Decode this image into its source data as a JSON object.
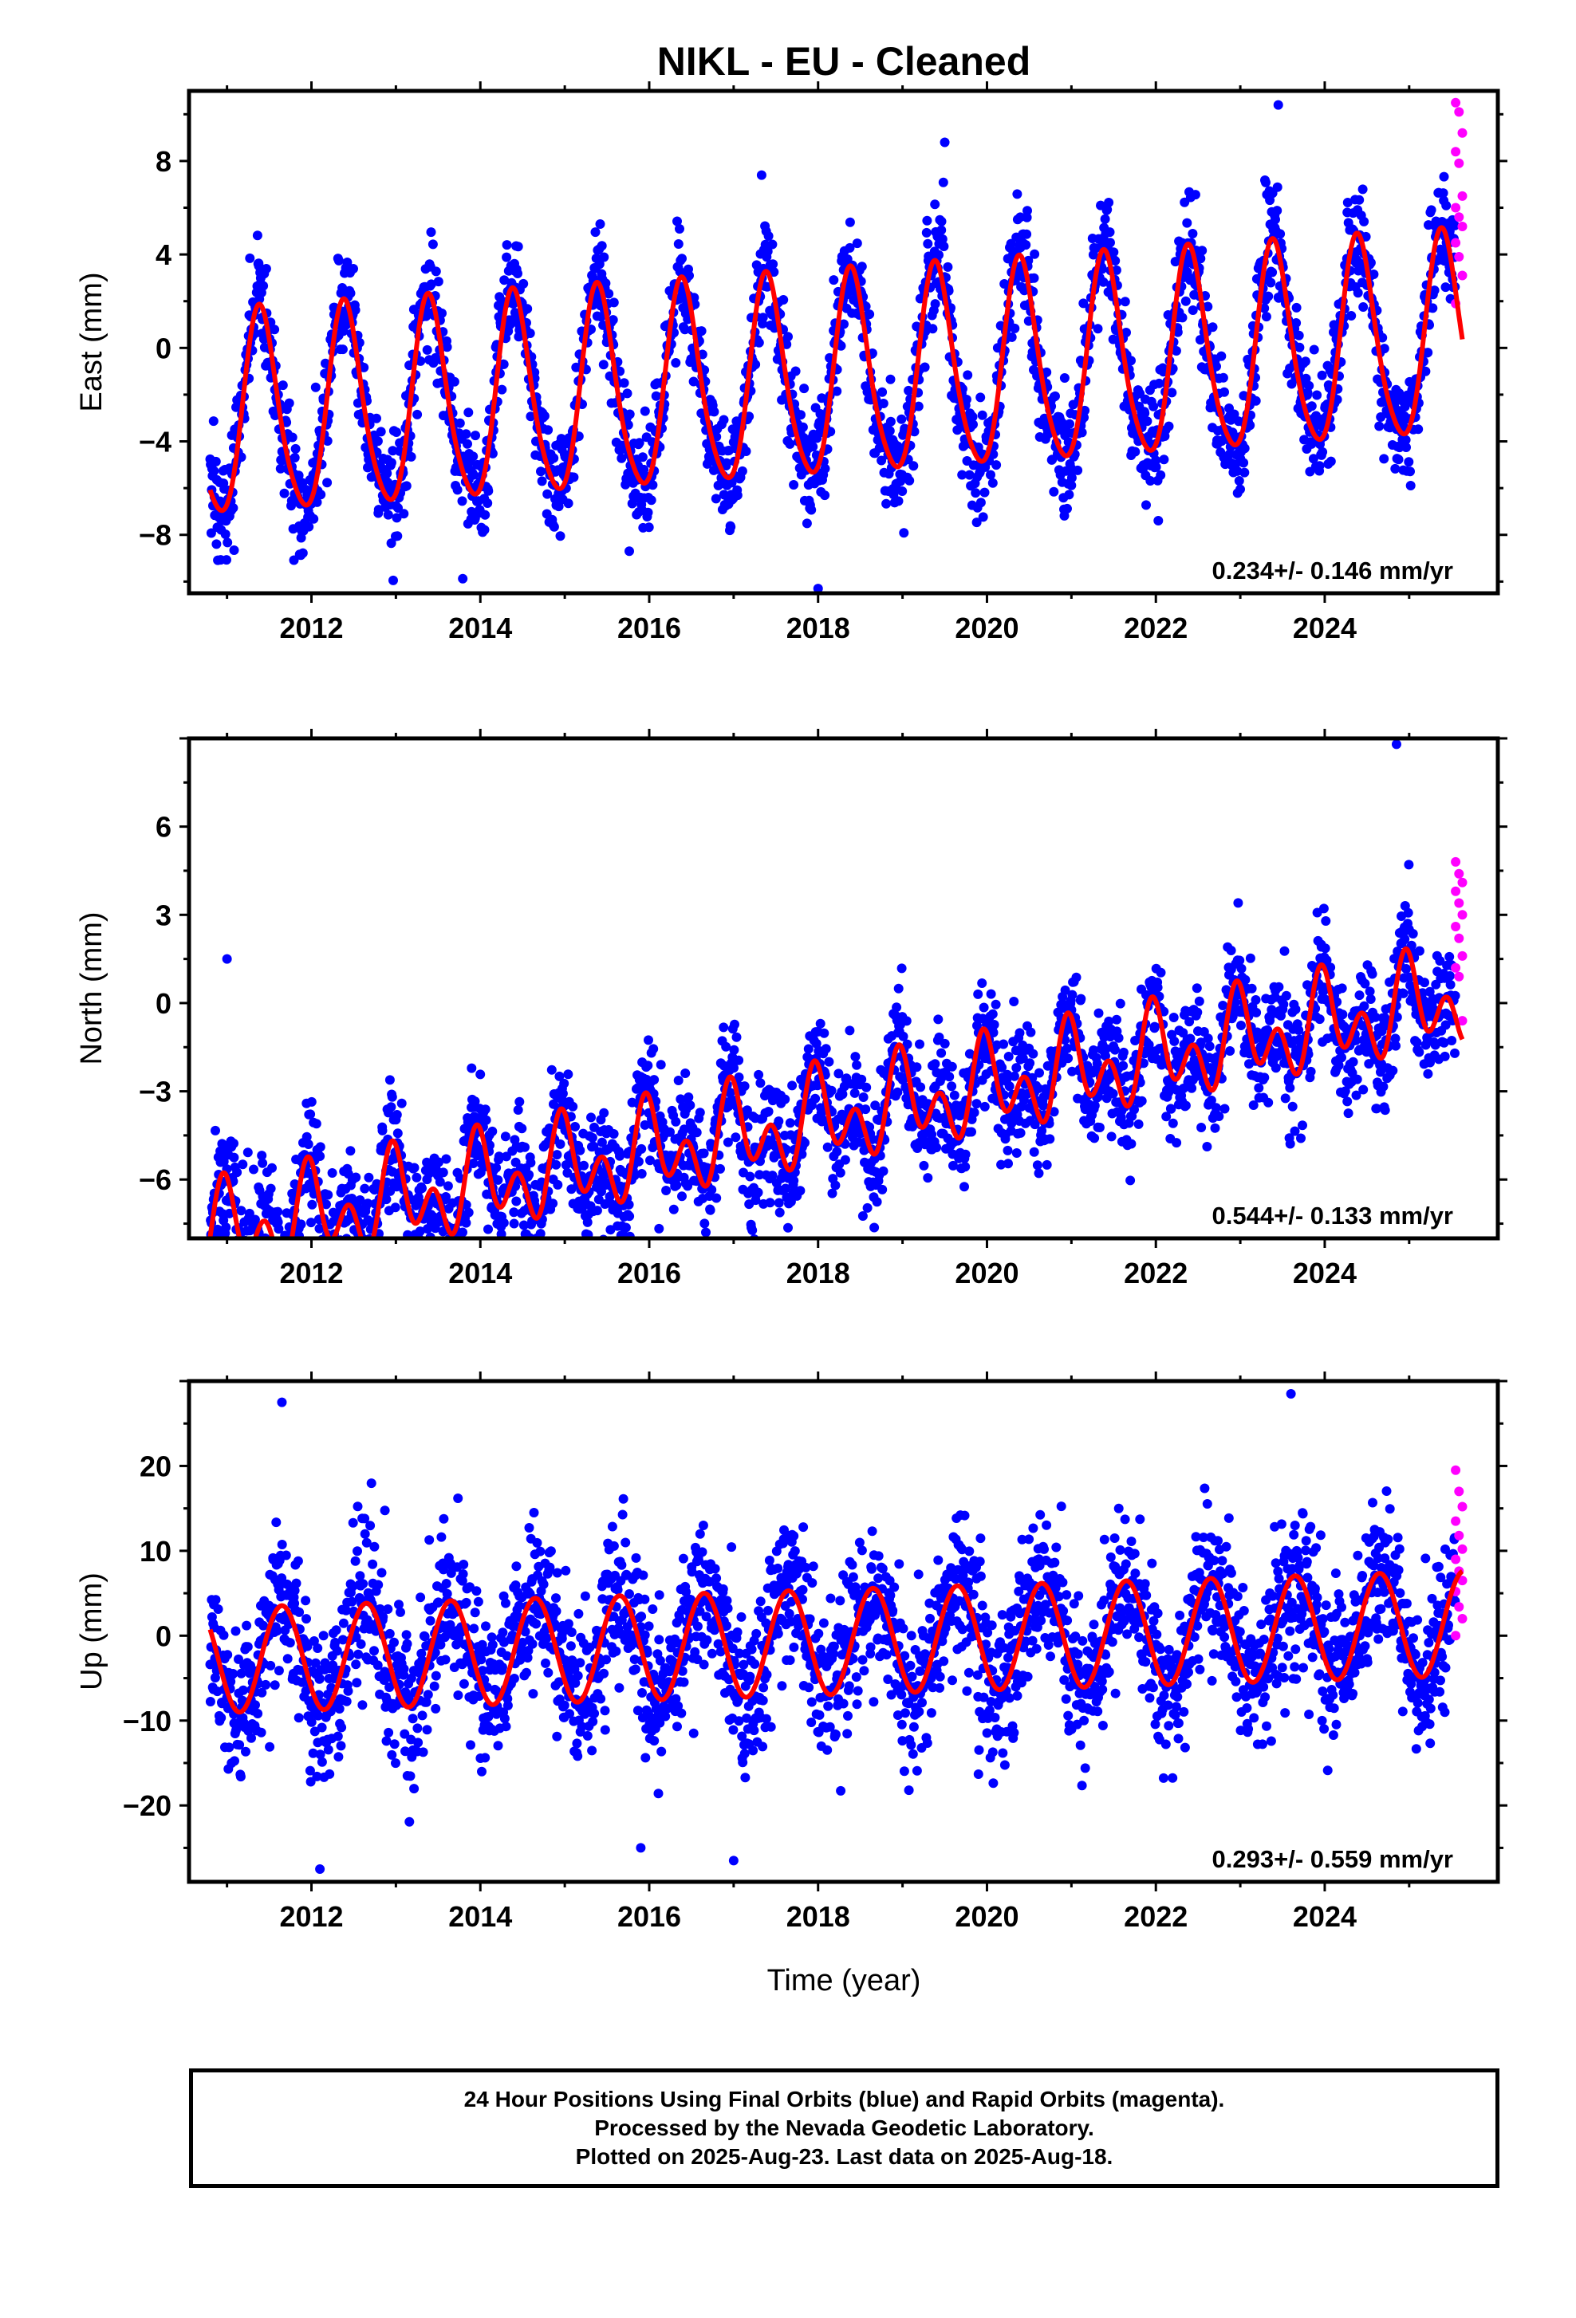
{
  "title": "NIKL  - EU - Cleaned",
  "xlabel": "Time (year)",
  "colors": {
    "final": "#0000ff",
    "rapid": "#ff00ff",
    "model": "#ff0000",
    "axes": "#000000"
  },
  "footer": {
    "line1": "24 Hour Positions Using Final Orbits (blue) and Rapid Orbits (magenta).",
    "line2": "Processed by the Nevada Geodetic Laboratory.",
    "line3": "Plotted on 2025-Aug-23. Last data on 2025-Aug-18."
  },
  "chart_data": [
    {
      "type": "scatter",
      "panel": "east",
      "ylabel": "East (mm)",
      "xlim": [
        2010.55,
        2026.05
      ],
      "ylim": [
        -10.5,
        11.0
      ],
      "xticks": [
        2012,
        2014,
        2016,
        2018,
        2020,
        2022,
        2024
      ],
      "yticks": [
        -8,
        -4,
        0,
        4,
        8
      ],
      "rate_label": "0.234+/- 0.146 mm/yr",
      "model": {
        "name": "model fit",
        "start": 2010.8,
        "end": 2025.63,
        "trend": [
          -1.4,
          0.234
        ],
        "annual_amp": 4.3,
        "annual_peak": 0.4,
        "semiannual_amp": 0.6,
        "semiannual_peak": 0.35
      },
      "scatter": {
        "final_sd": 1.2,
        "final_outliers": [
          [
            2018.0,
            -10.3
          ],
          [
            2023.45,
            10.4
          ],
          [
            2019.5,
            8.8
          ]
        ]
      },
      "rapid": {
        "name": "Rapid Orbits",
        "x_range": [
          2025.55,
          2025.63
        ],
        "values": [
          10.5,
          10.1,
          9.2,
          8.4,
          7.9,
          6.5,
          6.0,
          5.6,
          5.2,
          4.5,
          3.9,
          3.1,
          1.9
        ]
      }
    },
    {
      "type": "scatter",
      "panel": "north",
      "ylabel": "North (mm)",
      "xlim": [
        2010.55,
        2026.05
      ],
      "ylim": [
        -8.0,
        9.0
      ],
      "xticks": [
        2012,
        2014,
        2016,
        2018,
        2020,
        2022,
        2024
      ],
      "yticks": [
        -6,
        -3,
        0,
        3,
        6
      ],
      "rate_label": "0.544+/- 0.133 mm/yr",
      "model": {
        "name": "model fit",
        "start": 2010.8,
        "end": 2025.63,
        "trend": [
          -4.0,
          0.544
        ],
        "annual_amp": 1.0,
        "annual_peak": 0.0,
        "semiannual_amp": 1.1,
        "semiannual_peak": 0.95,
        "offsets": [
          [
            2014.8,
            1.1
          ],
          [
            2022.8,
            1.0
          ]
        ]
      },
      "scatter": {
        "final_sd": 1.05,
        "final_outliers": [
          [
            2024.85,
            8.8
          ],
          [
            2011.0,
            1.5
          ],
          [
            2015.6,
            -6.0
          ],
          [
            2014.4,
            -7.5
          ]
        ]
      },
      "rapid": {
        "name": "Rapid Orbits",
        "x_range": [
          2025.55,
          2025.63
        ],
        "values": [
          4.8,
          4.4,
          4.1,
          3.8,
          3.4,
          3.0,
          2.6,
          2.2,
          1.6,
          1.2,
          0.9,
          -0.6
        ]
      }
    },
    {
      "type": "scatter",
      "panel": "up",
      "ylabel": "Up (mm)",
      "xlim": [
        2010.55,
        2026.05
      ],
      "ylim": [
        -29.0,
        30.0
      ],
      "xticks": [
        2012,
        2014,
        2016,
        2018,
        2020,
        2022,
        2024
      ],
      "yticks": [
        -20,
        -10,
        0,
        10,
        20
      ],
      "rate_label": "0.293+/- 0.559 mm/yr",
      "model": {
        "name": "model fit",
        "start": 2010.8,
        "end": 2025.63,
        "trend": [
          -0.8,
          0.293
        ],
        "annual_amp": 6.2,
        "annual_peak": 0.65,
        "semiannual_amp": 0.0,
        "semiannual_peak": 0.0
      },
      "scatter": {
        "final_sd": 4.6,
        "final_outliers": [
          [
            2011.65,
            27.5
          ],
          [
            2023.6,
            28.5
          ],
          [
            2012.1,
            -27.5
          ],
          [
            2017.0,
            -26.5
          ],
          [
            2015.9,
            -25.0
          ]
        ]
      },
      "rapid": {
        "name": "Rapid Orbits",
        "x_range": [
          2025.55,
          2025.63
        ],
        "values": [
          19.5,
          17.0,
          15.2,
          13.5,
          11.8,
          10.2,
          9.0,
          7.6,
          6.5,
          5.2,
          3.4,
          2.0,
          0.0
        ]
      }
    }
  ]
}
